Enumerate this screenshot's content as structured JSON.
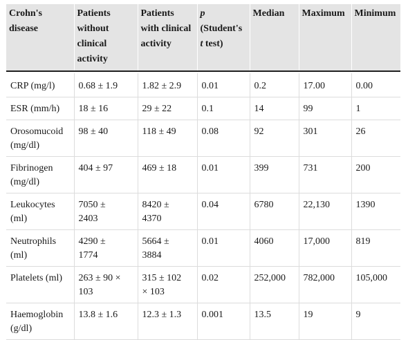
{
  "table": {
    "headers": [
      {
        "lines": [
          "Crohn's",
          "disease"
        ]
      },
      {
        "lines": [
          "Patients",
          "without",
          "clinical",
          "activity"
        ]
      },
      {
        "lines": [
          "Patients",
          "with clinical",
          "activity"
        ]
      },
      {
        "lines_p": {
          "symbol": "p",
          "rest": [
            "(Student's"
          ],
          "ttest_italic": "t",
          "ttest_rest": " test)"
        }
      },
      {
        "lines": [
          "Median"
        ]
      },
      {
        "lines": [
          "Maximum"
        ]
      },
      {
        "lines": [
          "Minimum"
        ]
      }
    ],
    "rows": [
      {
        "name": [
          "CRP (mg/l)"
        ],
        "without": [
          "0.68 ± 1.9"
        ],
        "with": [
          "1.82 ± 2.9"
        ],
        "p": "0.01",
        "median": "0.2",
        "max": "17.00",
        "min": "0.00"
      },
      {
        "name": [
          "ESR (mm/h)"
        ],
        "without": [
          "18 ± 16"
        ],
        "with": [
          "29 ± 22"
        ],
        "p": "0.1",
        "median": "14",
        "max": "99",
        "min": "1"
      },
      {
        "name": [
          "Orosomucoid",
          "(mg/dl)"
        ],
        "without": [
          "98 ± 40"
        ],
        "with": [
          "118 ± 49"
        ],
        "p": "0.08",
        "median": "92",
        "max": "301",
        "min": "26"
      },
      {
        "name": [
          "Fibrinogen",
          "(mg/dl)"
        ],
        "without": [
          "404 ± 97"
        ],
        "with": [
          "469 ± 18"
        ],
        "p": "0.01",
        "median": "399",
        "max": "731",
        "min": "200"
      },
      {
        "name": [
          "Leukocytes",
          "(ml)"
        ],
        "without": [
          "7050 ±",
          "2403"
        ],
        "with": [
          "8420 ±",
          "4370"
        ],
        "p": "0.04",
        "median": "6780",
        "max": "22,130",
        "min": "1390"
      },
      {
        "name": [
          "Neutrophils",
          "(ml)"
        ],
        "without": [
          "4290 ±",
          "1774"
        ],
        "with": [
          "5664 ±",
          "3884"
        ],
        "p": "0.01",
        "median": "4060",
        "max": "17,000",
        "min": "819"
      },
      {
        "name": [
          "Platelets (ml)"
        ],
        "without": [
          "263 ± 90 ×",
          "103"
        ],
        "with": [
          "315 ± 102",
          "× 103"
        ],
        "p": "0.02",
        "median": "252,000",
        "max": "782,000",
        "min": "105,000"
      },
      {
        "name": [
          "Haemoglobin",
          "(g/dl)"
        ],
        "without": [
          "13.8 ± 1.6"
        ],
        "with": [
          "12.3 ± 1.3"
        ],
        "p": "0.001",
        "median": "13.5",
        "max": "19",
        "min": "9"
      }
    ]
  }
}
